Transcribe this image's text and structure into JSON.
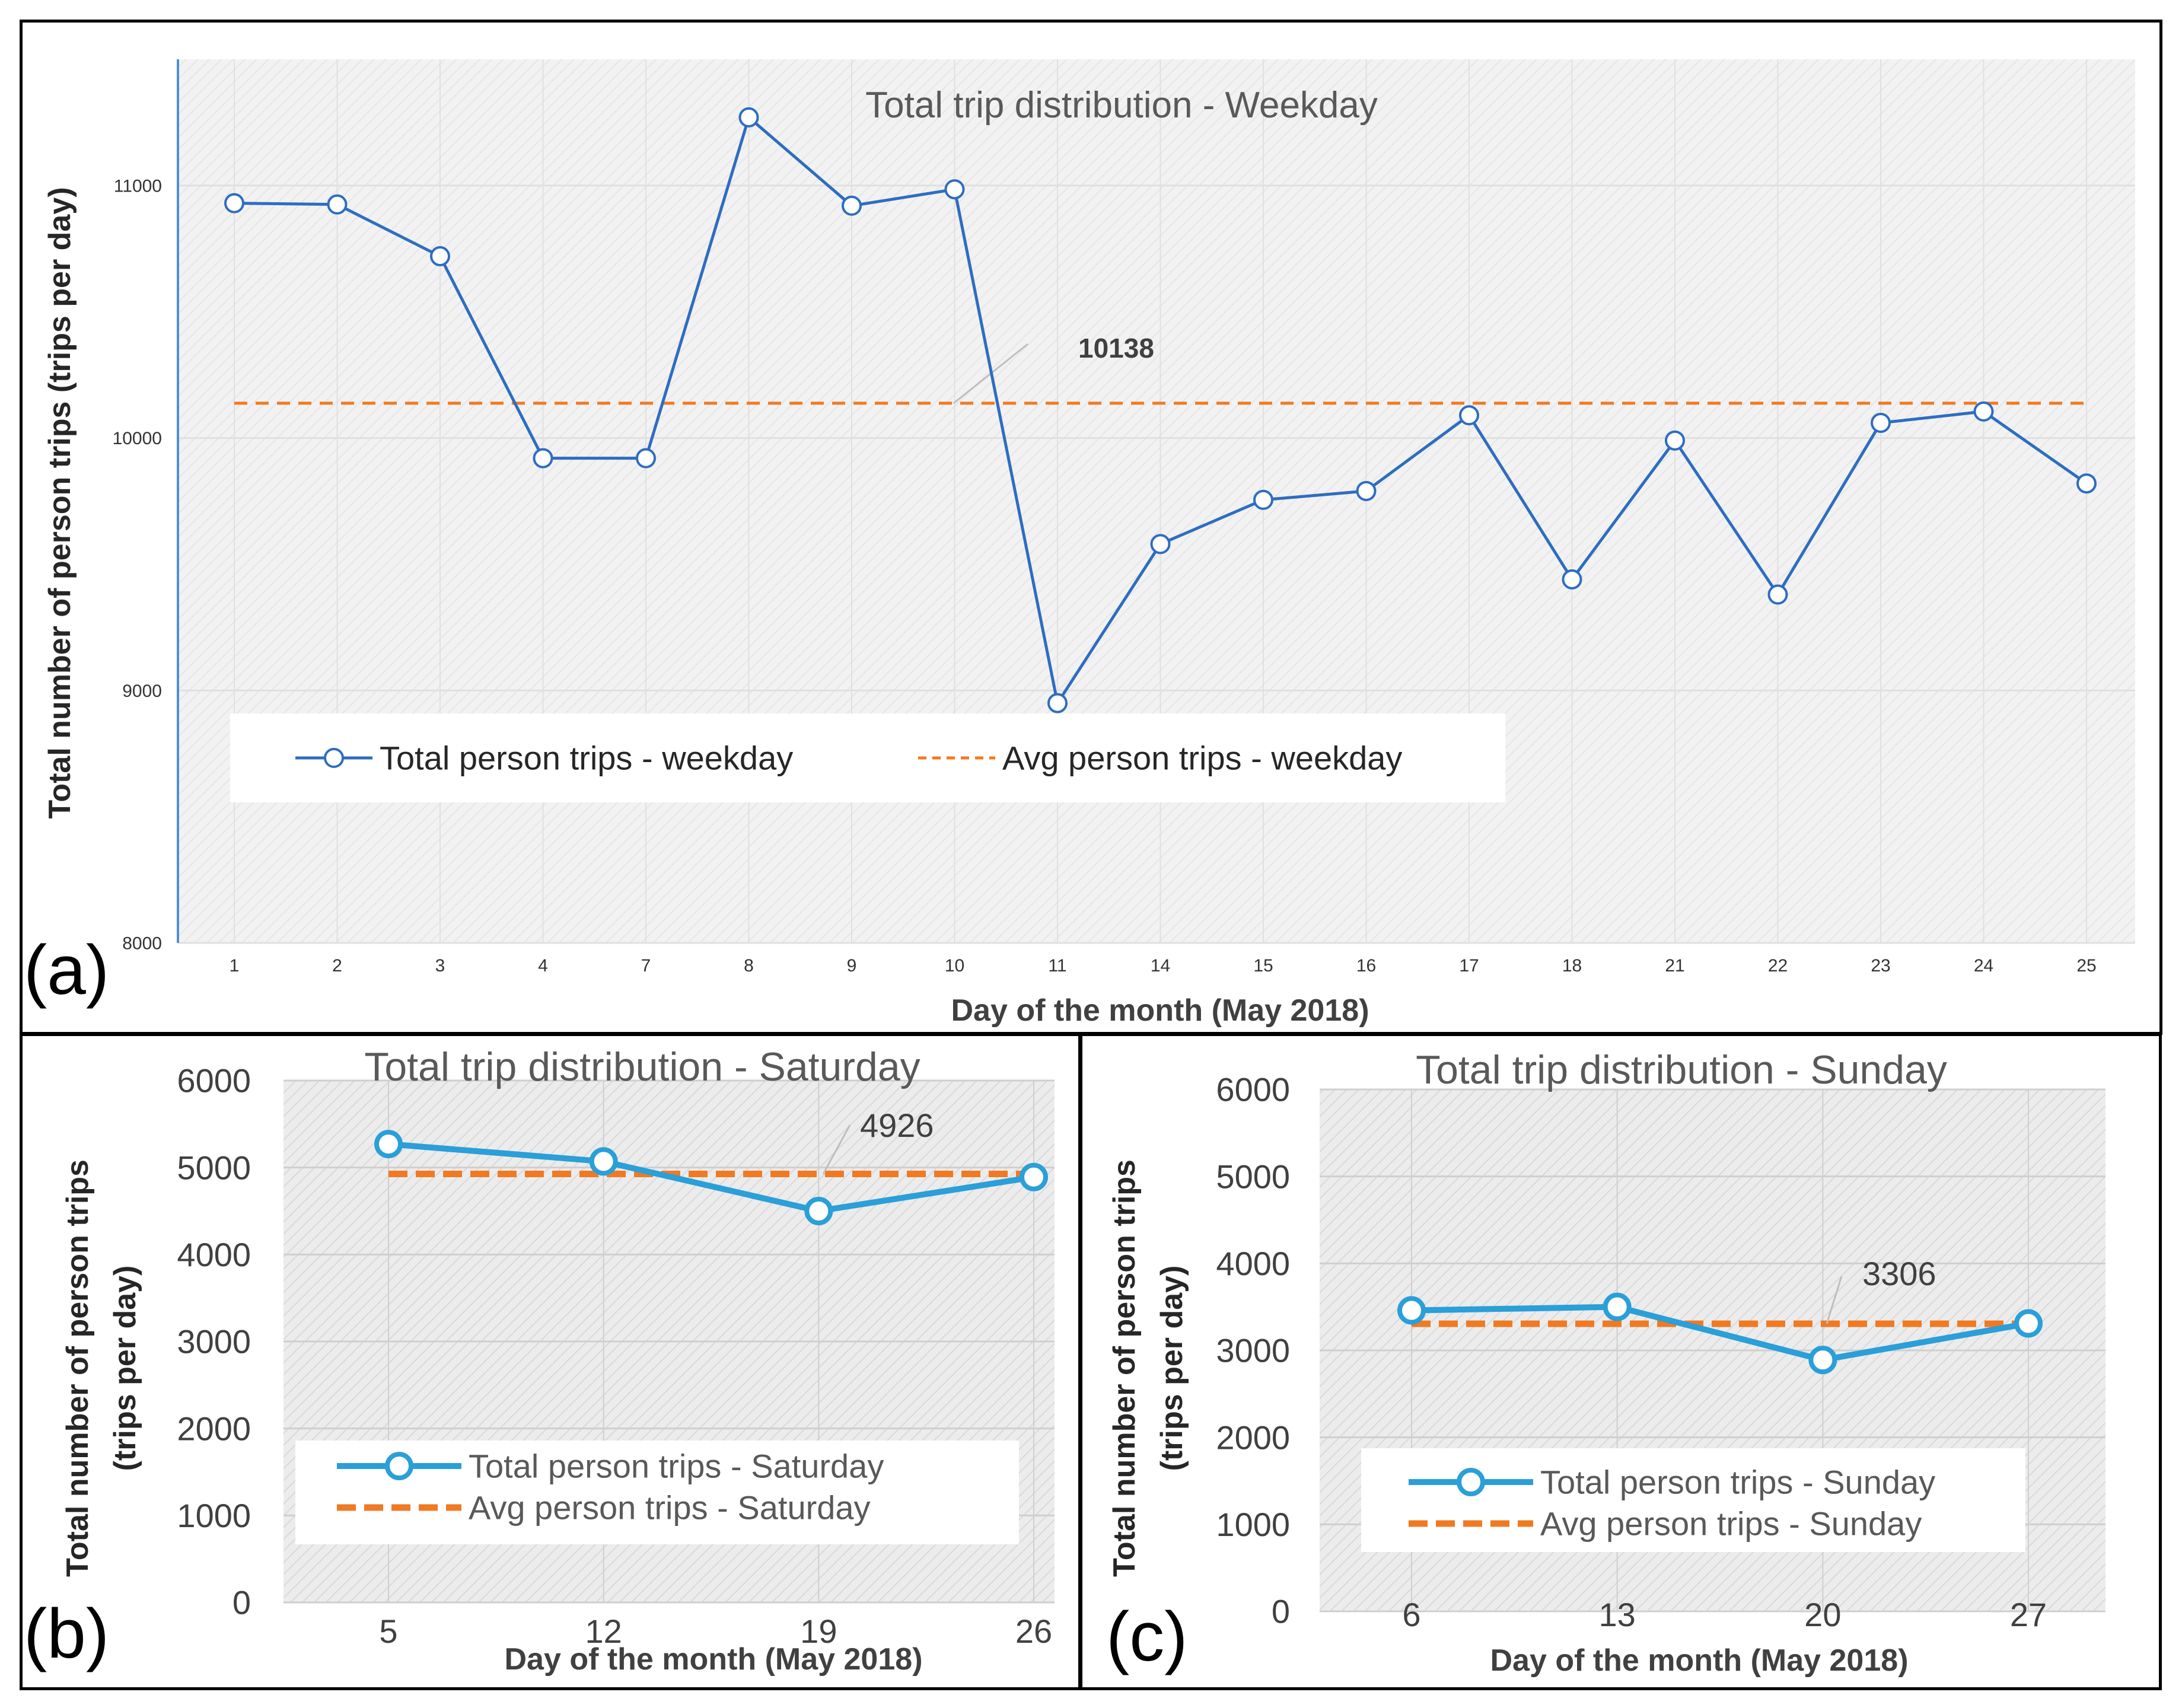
{
  "chart_data": [
    {
      "panel_label": "(a)",
      "type": "line",
      "title": "Total trip distribution - Weekday",
      "xlabel": "Day of the month (May 2018)",
      "ylabel": "Total number of person trips (trips per day)",
      "categories": [
        "1",
        "2",
        "3",
        "4",
        "7",
        "8",
        "9",
        "10",
        "11",
        "14",
        "15",
        "16",
        "17",
        "18",
        "21",
        "22",
        "23",
        "24",
        "25"
      ],
      "ylim": [
        8000,
        11500
      ],
      "yticks": [
        "8000",
        "9000",
        "10000",
        "11000"
      ],
      "grid": true,
      "legend_position": "lower-left",
      "series": [
        {
          "name": "Total person trips - weekday",
          "style": "solid-markers",
          "color": "#2e6dc0",
          "values": [
            10930,
            10925,
            10720,
            9920,
            9920,
            11270,
            10920,
            10985,
            8950,
            9580,
            9755,
            9790,
            10090,
            9440,
            9990,
            9380,
            10060,
            10105,
            9820
          ]
        },
        {
          "name": "Avg person trips - weekday",
          "style": "dashed",
          "color": "#f07a22",
          "values": [
            10138,
            10138,
            10138,
            10138,
            10138,
            10138,
            10138,
            10138,
            10138,
            10138,
            10138,
            10138,
            10138,
            10138,
            10138,
            10138,
            10138,
            10138,
            10138
          ]
        }
      ],
      "annotation": "10138"
    },
    {
      "panel_label": "(b)",
      "type": "line",
      "title": "Total trip distribution - Saturday",
      "xlabel": "Day of the month (May 2018)",
      "ylabel_lines": [
        "Total number of person trips",
        "(trips per day)"
      ],
      "categories": [
        "5",
        "12",
        "19",
        "26"
      ],
      "ylim": [
        0,
        6000
      ],
      "yticks": [
        "0",
        "1000",
        "2000",
        "3000",
        "4000",
        "5000",
        "6000"
      ],
      "grid": true,
      "legend_position": "bottom",
      "series": [
        {
          "name": "Total person trips - Saturday",
          "style": "solid-markers",
          "color": "#2a9fd8",
          "values": [
            5270,
            5070,
            4500,
            4890
          ]
        },
        {
          "name": "Avg person trips - Saturday",
          "style": "dashed",
          "color": "#f07a22",
          "values": [
            4926,
            4926,
            4926,
            4926
          ]
        }
      ],
      "annotation": "4926"
    },
    {
      "panel_label": "(c)",
      "type": "line",
      "title": "Total trip distribution - Sunday",
      "xlabel": "Day of the month (May 2018)",
      "ylabel_lines": [
        "Total number of person trips",
        "(trips per day)"
      ],
      "categories": [
        "6",
        "13",
        "20",
        "27"
      ],
      "ylim": [
        0,
        6000
      ],
      "yticks": [
        "0",
        "1000",
        "2000",
        "3000",
        "4000",
        "5000",
        "6000"
      ],
      "grid": true,
      "legend_position": "bottom",
      "series": [
        {
          "name": "Total person trips - Sunday",
          "style": "solid-markers",
          "color": "#2a9fd8",
          "values": [
            3460,
            3500,
            2890,
            3310
          ]
        },
        {
          "name": "Avg person trips - Sunday",
          "style": "dashed",
          "color": "#f07a22",
          "values": [
            3306,
            3306,
            3306,
            3306
          ]
        }
      ],
      "annotation": "3306"
    }
  ]
}
